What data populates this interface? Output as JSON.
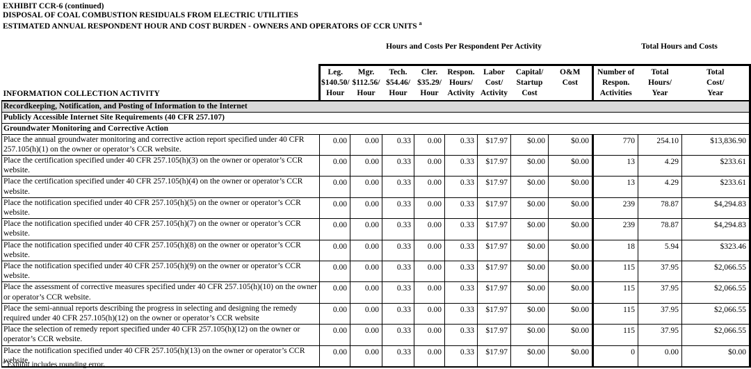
{
  "titles": {
    "line1": "EXHIBIT CCR-6 (continued)",
    "line2": "DISPOSAL OF COAL COMBUSTION RESIDUALS FROM ELECTRIC UTILITIES",
    "line3": "ESTIMATED ANNUAL RESPONDENT HOUR AND COST BURDEN - OWNERS AND OPERATORS OF CCR UNITS",
    "line3_sup": "a"
  },
  "group_headers": {
    "per_activity": "Hours and Costs Per Respondent Per Activity",
    "totals": "Total Hours and Costs"
  },
  "columns": {
    "desc": "INFORMATION COLLECTION ACTIVITY",
    "leg": {
      "l1": "Leg.",
      "l2": "$140.50/",
      "l3": "Hour"
    },
    "mgr": {
      "l1": "Mgr.",
      "l2": "$112.56/",
      "l3": "Hour"
    },
    "tech": {
      "l1": "Tech.",
      "l2": "$54.46/",
      "l3": "Hour"
    },
    "cler": {
      "l1": "Cler.",
      "l2": "$35.29/",
      "l3": "Hour"
    },
    "respon": {
      "l1": "Respon.",
      "l2": "Hours/",
      "l3": "Activity"
    },
    "labor": {
      "l1": "Labor",
      "l2": "Cost/",
      "l3": "Activity"
    },
    "capital": {
      "l1": "Capital/",
      "l2": "Startup",
      "l3": "Cost"
    },
    "om": {
      "l1": "",
      "l2": "O&M",
      "l3": "Cost"
    },
    "number": {
      "l1": "Number of",
      "l2": "Respon.",
      "l3": "Activities"
    },
    "total_hours": {
      "l1": "Total",
      "l2": "Hours/",
      "l3": "Year"
    },
    "total_cost": {
      "l1": "Total",
      "l2": "Cost/",
      "l3": "Year"
    }
  },
  "sections": {
    "s1": "Recordkeeping, Notification, and Posting of Information to the Internet",
    "s2": "Publicly Accessible Internet Site Requirements (40 CFR 257.107)",
    "s3": "Groundwater Monitoring and Corrective Action"
  },
  "table": {
    "rows": [
      {
        "activity": "Place the annual groundwater monitoring and corrective action report specified under 40 CFR 257.105(h)(1) on the owner or operator’s CCR website.",
        "leg": "0.00",
        "mgr": "0.00",
        "tech": "0.33",
        "cler": "0.00",
        "respon_hours": "0.33",
        "labor_cost": "$17.97",
        "capital_cost": "$0.00",
        "om_cost": "$0.00",
        "num_activities": "770",
        "total_hours": "254.10",
        "total_cost": "$13,836.90"
      },
      {
        "activity": "Place the certification specified under 40 CFR 257.105(h)(3) on the owner or operator’s CCR website.",
        "leg": "0.00",
        "mgr": "0.00",
        "tech": "0.33",
        "cler": "0.00",
        "respon_hours": "0.33",
        "labor_cost": "$17.97",
        "capital_cost": "$0.00",
        "om_cost": "$0.00",
        "num_activities": "13",
        "total_hours": "4.29",
        "total_cost": "$233.61"
      },
      {
        "activity": "Place the certification specified under 40 CFR 257.105(h)(4) on the owner or operator’s CCR website.",
        "leg": "0.00",
        "mgr": "0.00",
        "tech": "0.33",
        "cler": "0.00",
        "respon_hours": "0.33",
        "labor_cost": "$17.97",
        "capital_cost": "$0.00",
        "om_cost": "$0.00",
        "num_activities": "13",
        "total_hours": "4.29",
        "total_cost": "$233.61"
      },
      {
        "activity": "Place the notification specified under 40 CFR 257.105(h)(5) on the owner or operator’s CCR website.",
        "leg": "0.00",
        "mgr": "0.00",
        "tech": "0.33",
        "cler": "0.00",
        "respon_hours": "0.33",
        "labor_cost": "$17.97",
        "capital_cost": "$0.00",
        "om_cost": "$0.00",
        "num_activities": "239",
        "total_hours": "78.87",
        "total_cost": "$4,294.83"
      },
      {
        "activity": "Place the notification specified under 40 CFR 257.105(h)(7) on the owner or operator’s CCR website.",
        "leg": "0.00",
        "mgr": "0.00",
        "tech": "0.33",
        "cler": "0.00",
        "respon_hours": "0.33",
        "labor_cost": "$17.97",
        "capital_cost": "$0.00",
        "om_cost": "$0.00",
        "num_activities": "239",
        "total_hours": "78.87",
        "total_cost": "$4,294.83"
      },
      {
        "activity": "Place the notification specified under 40 CFR 257.105(h)(8) on the owner or operator’s CCR website.",
        "leg": "0.00",
        "mgr": "0.00",
        "tech": "0.33",
        "cler": "0.00",
        "respon_hours": "0.33",
        "labor_cost": "$17.97",
        "capital_cost": "$0.00",
        "om_cost": "$0.00",
        "num_activities": "18",
        "total_hours": "5.94",
        "total_cost": "$323.46"
      },
      {
        "activity": "Place the notification specified under 40 CFR 257.105(h)(9) on the owner or operator’s CCR website.",
        "leg": "0.00",
        "mgr": "0.00",
        "tech": "0.33",
        "cler": "0.00",
        "respon_hours": "0.33",
        "labor_cost": "$17.97",
        "capital_cost": "$0.00",
        "om_cost": "$0.00",
        "num_activities": "115",
        "total_hours": "37.95",
        "total_cost": "$2,066.55"
      },
      {
        "activity": "Place the assessment of corrective measures specified under 40 CFR 257.105(h)(10) on the owner or operator’s CCR website.",
        "leg": "0.00",
        "mgr": "0.00",
        "tech": "0.33",
        "cler": "0.00",
        "respon_hours": "0.33",
        "labor_cost": "$17.97",
        "capital_cost": "$0.00",
        "om_cost": "$0.00",
        "num_activities": "115",
        "total_hours": "37.95",
        "total_cost": "$2,066.55"
      },
      {
        "activity": "Place the semi-annual reports describing the progress in selecting and designing the remedy required under 40 CFR 257.105(h)(12) on the owner or operator’s CCR website",
        "leg": "0.00",
        "mgr": "0.00",
        "tech": "0.33",
        "cler": "0.00",
        "respon_hours": "0.33",
        "labor_cost": "$17.97",
        "capital_cost": "$0.00",
        "om_cost": "$0.00",
        "num_activities": "115",
        "total_hours": "37.95",
        "total_cost": "$2,066.55"
      },
      {
        "activity": "Place the selection of remedy report specified under 40 CFR 257.105(h)(12) on the owner or operator’s CCR website.",
        "leg": "0.00",
        "mgr": "0.00",
        "tech": "0.33",
        "cler": "0.00",
        "respon_hours": "0.33",
        "labor_cost": "$17.97",
        "capital_cost": "$0.00",
        "om_cost": "$0.00",
        "num_activities": "115",
        "total_hours": "37.95",
        "total_cost": "$2,066.55"
      },
      {
        "activity": "Place the notification specified under 40 CFR 257.105(h)(13) on the owner or operator’s CCR website.",
        "leg": "0.00",
        "mgr": "0.00",
        "tech": "0.33",
        "cler": "0.00",
        "respon_hours": "0.33",
        "labor_cost": "$17.97",
        "capital_cost": "$0.00",
        "om_cost": "$0.00",
        "num_activities": "0",
        "total_hours": "0.00",
        "total_cost": "$0.00"
      }
    ]
  },
  "footnote": {
    "sup": "a",
    "text": " Exhibit includes rounding error."
  }
}
